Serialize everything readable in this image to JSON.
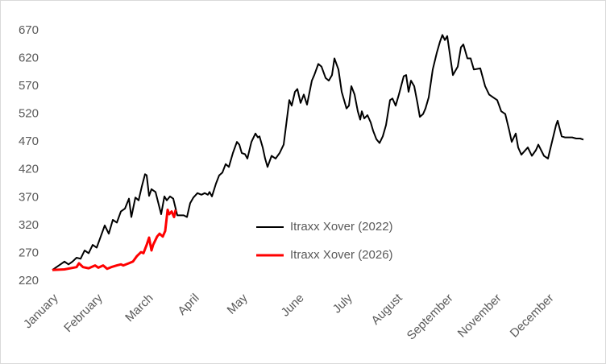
{
  "chart_data": {
    "type": "line",
    "xlim": [
      0,
      660
    ],
    "xticks": [
      {
        "value": 0,
        "label": "January"
      },
      {
        "value": 55,
        "label": "February"
      },
      {
        "value": 118,
        "label": "March"
      },
      {
        "value": 175,
        "label": "April"
      },
      {
        "value": 235,
        "label": "May"
      },
      {
        "value": 305,
        "label": "June"
      },
      {
        "value": 365,
        "label": "July"
      },
      {
        "value": 427,
        "label": "August"
      },
      {
        "value": 490,
        "label": "September"
      },
      {
        "value": 550,
        "label": "November"
      },
      {
        "value": 615,
        "label": "December"
      }
    ],
    "ylim": [
      220,
      680
    ],
    "yticks": [
      220,
      270,
      320,
      370,
      420,
      470,
      520,
      570,
      620,
      670
    ],
    "grid": false,
    "series": [
      {
        "name": "Itraxx Xover (2022)",
        "color": "#000000",
        "x": [
          0,
          10,
          15,
          20,
          25,
          30,
          35,
          40,
          45,
          50,
          55,
          60,
          65,
          70,
          75,
          80,
          85,
          90,
          95,
          98,
          103,
          107,
          111,
          115,
          117,
          120,
          123,
          128,
          135,
          139,
          142,
          146,
          150,
          155,
          163,
          167,
          171,
          175,
          180,
          185,
          189,
          193,
          195,
          198,
          203,
          207,
          211,
          215,
          219,
          224,
          229,
          232,
          235,
          239,
          242,
          247,
          252,
          255,
          257,
          261,
          264,
          267,
          272,
          277,
          282,
          287,
          294,
          297,
          301,
          304,
          308,
          312,
          316,
          322,
          325,
          330,
          334,
          339,
          343,
          347,
          350,
          355,
          359,
          365,
          368,
          371,
          375,
          379,
          382,
          384,
          387,
          391,
          395,
          398,
          402,
          406,
          410,
          414,
          419,
          422,
          426,
          430,
          436,
          439,
          442,
          445,
          449,
          453,
          456,
          460,
          463,
          467,
          472,
          477,
          481,
          484,
          487,
          490,
          497,
          503,
          507,
          510,
          515,
          519,
          523,
          531,
          537,
          542,
          547,
          552,
          557,
          562,
          567,
          570,
          575,
          578,
          582,
          590,
          595,
          600,
          603,
          610,
          615,
          625,
          627,
          632,
          636,
          640,
          645,
          650,
          655,
          659
        ],
        "values": [
          240,
          250,
          255,
          250,
          255,
          262,
          260,
          275,
          270,
          285,
          280,
          300,
          320,
          305,
          330,
          325,
          345,
          350,
          368,
          335,
          370,
          365,
          390,
          412,
          410,
          373,
          385,
          380,
          340,
          372,
          365,
          372,
          368,
          338,
          338,
          335,
          360,
          370,
          378,
          375,
          378,
          375,
          380,
          372,
          395,
          410,
          415,
          430,
          425,
          450,
          470,
          465,
          450,
          448,
          440,
          470,
          485,
          478,
          480,
          460,
          440,
          425,
          445,
          440,
          450,
          465,
          545,
          535,
          560,
          565,
          540,
          555,
          537,
          580,
          590,
          610,
          605,
          585,
          580,
          590,
          620,
          600,
          560,
          530,
          535,
          570,
          555,
          525,
          510,
          525,
          512,
          518,
          505,
          490,
          475,
          468,
          480,
          500,
          545,
          548,
          535,
          555,
          588,
          590,
          560,
          580,
          570,
          540,
          515,
          520,
          530,
          550,
          600,
          630,
          650,
          662,
          653,
          660,
          590,
          605,
          640,
          645,
          620,
          620,
          600,
          602,
          570,
          555,
          550,
          545,
          525,
          520,
          490,
          470,
          485,
          460,
          447,
          460,
          445,
          455,
          465,
          445,
          440,
          500,
          508,
          480,
          478,
          478,
          478,
          476,
          476,
          474
        ]
      },
      {
        "name": "Itraxx Xover (2026)",
        "color": "#ff0000",
        "x": [
          0,
          15,
          30,
          33,
          38,
          45,
          53,
          57,
          63,
          68,
          73,
          80,
          85,
          88,
          95,
          100,
          105,
          110,
          113,
          117,
          120,
          123,
          125,
          130,
          133,
          137,
          140,
          143,
          145,
          148,
          151,
          153
        ],
        "values": [
          240,
          241,
          245,
          252,
          245,
          243,
          248,
          244,
          248,
          242,
          245,
          248,
          250,
          248,
          252,
          255,
          265,
          272,
          270,
          285,
          298,
          275,
          285,
          300,
          305,
          300,
          310,
          348,
          340,
          345,
          335,
          348
        ]
      }
    ]
  }
}
